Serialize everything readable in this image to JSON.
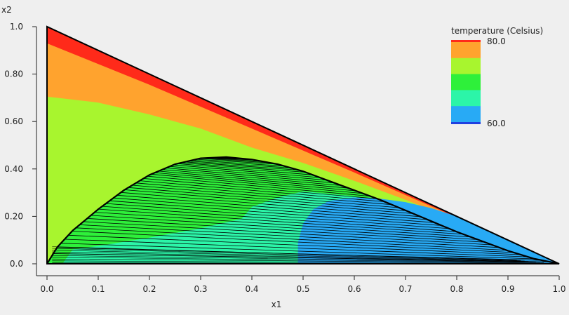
{
  "chart_data": {
    "type": "ternary-contour",
    "xlabel": "x1",
    "ylabel": "x2",
    "xlim": [
      0,
      1
    ],
    "ylim": [
      0,
      1
    ],
    "x_ticks": [
      "0.0",
      "0.1",
      "0.2",
      "0.3",
      "0.4",
      "0.5",
      "0.6",
      "0.7",
      "0.8",
      "0.9",
      "1.0"
    ],
    "y_ticks": [
      "0.0",
      "0.20",
      "0.40",
      "0.60",
      "0.80",
      "1.0"
    ],
    "x_tick_values": [
      0,
      0.1,
      0.2,
      0.3,
      0.4,
      0.5,
      0.6,
      0.7,
      0.8,
      0.9,
      1.0
    ],
    "y_tick_values": [
      0,
      0.2,
      0.4,
      0.6,
      0.8,
      1.0
    ],
    "legend": {
      "title": "temperature (Celsius)",
      "max_label": "80.0",
      "min_label": "60.0",
      "placement": "top-right",
      "colors": [
        "#ff2a1a",
        "#ffa32e",
        "#a8f52e",
        "#2ef03a",
        "#2cf5a8",
        "#28aaf5",
        "#2040e0"
      ]
    },
    "binodal": {
      "x": [
        0.0,
        0.02,
        0.05,
        0.1,
        0.15,
        0.2,
        0.25,
        0.3,
        0.35,
        0.4,
        0.45,
        0.5,
        0.55,
        0.6,
        0.65,
        0.7,
        0.75,
        0.8,
        0.85,
        0.9,
        0.95,
        1.0
      ],
      "y": [
        0.0,
        0.07,
        0.14,
        0.23,
        0.31,
        0.375,
        0.42,
        0.445,
        0.45,
        0.44,
        0.42,
        0.39,
        0.35,
        0.31,
        0.27,
        0.225,
        0.18,
        0.135,
        0.095,
        0.055,
        0.022,
        0.0
      ]
    },
    "tie_line_count": 44,
    "temperature_bands": [
      {
        "color": "#ffa32e",
        "boundary_x": [
          0.0,
          0.2,
          0.4,
          0.6,
          0.8,
          1.0
        ],
        "boundary_y": [
          0.93,
          0.755,
          0.57,
          0.385,
          0.195,
          0.0
        ]
      },
      {
        "color": "#a8f52e",
        "boundary_x": [
          0.0,
          0.1,
          0.2,
          0.3,
          0.4,
          0.5,
          0.6,
          0.7,
          0.8,
          0.9,
          1.0
        ],
        "boundary_y": [
          0.705,
          0.68,
          0.63,
          0.57,
          0.49,
          0.425,
          0.35,
          0.27,
          0.185,
          0.095,
          0.0
        ]
      },
      {
        "color": "#2ef03a",
        "boundary_x": [
          0.0,
          0.02,
          0.05,
          0.1,
          0.15,
          0.2,
          0.25,
          0.3,
          0.35,
          0.4,
          0.45,
          0.5,
          0.55,
          0.6,
          0.65,
          0.7,
          0.75,
          0.8,
          0.85,
          0.9,
          0.95,
          1.0
        ],
        "boundary_y": [
          0.0,
          0.07,
          0.14,
          0.23,
          0.31,
          0.375,
          0.42,
          0.445,
          0.45,
          0.44,
          0.42,
          0.39,
          0.35,
          0.31,
          0.27,
          0.225,
          0.18,
          0.135,
          0.095,
          0.055,
          0.022,
          0.0
        ]
      },
      {
        "color": "#2cf5a8",
        "boundary_x": [
          0.03,
          0.05,
          0.1,
          0.2,
          0.3,
          0.38,
          0.4,
          0.45,
          0.5,
          0.6,
          0.7,
          0.8,
          0.9,
          1.0
        ],
        "boundary_y": [
          0.0,
          0.06,
          0.075,
          0.11,
          0.15,
          0.19,
          0.24,
          0.28,
          0.305,
          0.285,
          0.23,
          0.16,
          0.08,
          0.0
        ]
      },
      {
        "color": "#28aaf5",
        "boundary_x": [
          0.49,
          0.49,
          0.5,
          0.52,
          0.55,
          0.6,
          0.65,
          0.7,
          0.75,
          0.8,
          0.85,
          0.9,
          1.0
        ],
        "boundary_y": [
          0.0,
          0.09,
          0.17,
          0.23,
          0.265,
          0.28,
          0.275,
          0.26,
          0.235,
          0.2,
          0.15,
          0.1,
          0.0
        ]
      },
      {
        "color": "#2040e0",
        "boundary_x": [
          0.98,
          1.0
        ],
        "boundary_y": [
          0.0,
          0.0
        ]
      }
    ]
  }
}
